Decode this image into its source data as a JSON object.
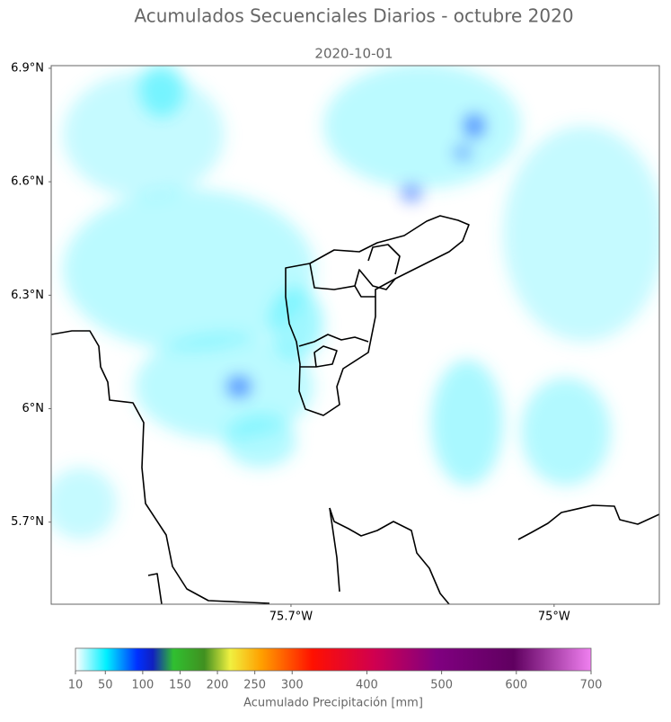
{
  "chart_data": {
    "type": "map",
    "title": "Acumulados Secuenciales Diarios - octubre 2020",
    "subtitle": "2020-10-01",
    "xlim": [
      -76.338,
      -74.72
    ],
    "ylim": [
      5.483,
      6.907
    ],
    "xticks": [
      {
        "value": -75.7,
        "label": "75.7°W"
      },
      {
        "value": -75,
        "label": "75°W"
      }
    ],
    "yticks": [
      {
        "value": 6.9,
        "label": "6.9°N"
      },
      {
        "value": 6.6,
        "label": "6.6°N"
      },
      {
        "value": 6.3,
        "label": "6.3°N"
      },
      {
        "value": 6,
        "label": "6°N"
      },
      {
        "value": 5.7,
        "label": "5.7°N"
      }
    ],
    "colorbar": {
      "label": "Acumulado Precipitación [mm]",
      "lim": [
        10,
        700
      ],
      "ticks": [
        10,
        50,
        100,
        150,
        200,
        250,
        300,
        400,
        500,
        600,
        700
      ]
    }
  }
}
